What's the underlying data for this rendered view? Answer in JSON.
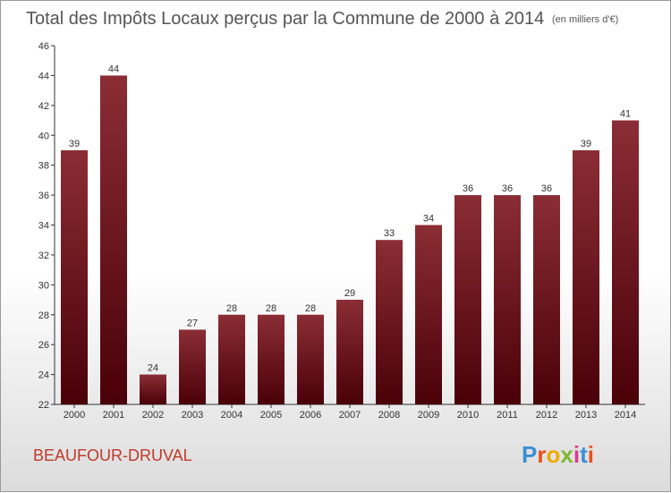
{
  "title": "Total des Impôts Locaux perçus par la Commune de 2000 à 2014",
  "unit_label": "(en milliers d'€)",
  "commune": "BEAUFOUR-DRUVAL",
  "logo": {
    "text": "Proxiti",
    "colors": [
      "#3a8fd6",
      "#e8501b",
      "#f0a800",
      "#7cb72d",
      "#d93b8a",
      "#3a8fd6",
      "#e8501b"
    ]
  },
  "colors": {
    "bar_top": "#8b2d35",
    "bar_bottom": "#4a0008",
    "commune": "#c0392b",
    "title": "#555555"
  },
  "chart_data": {
    "type": "bar",
    "title": "Total des Impôts Locaux perçus par la Commune de 2000 à 2014",
    "xlabel": "",
    "ylabel": "",
    "categories": [
      "2000",
      "2001",
      "2002",
      "2003",
      "2004",
      "2005",
      "2006",
      "2007",
      "2008",
      "2009",
      "2010",
      "2011",
      "2012",
      "2013",
      "2014"
    ],
    "values": [
      39,
      44,
      24,
      27,
      28,
      28,
      28,
      29,
      33,
      34,
      36,
      36,
      36,
      39,
      41
    ],
    "ylim": [
      22,
      46
    ],
    "yticks": [
      22,
      24,
      26,
      28,
      30,
      32,
      34,
      36,
      38,
      40,
      42,
      44,
      46
    ],
    "grid": false,
    "data_labels": true
  }
}
